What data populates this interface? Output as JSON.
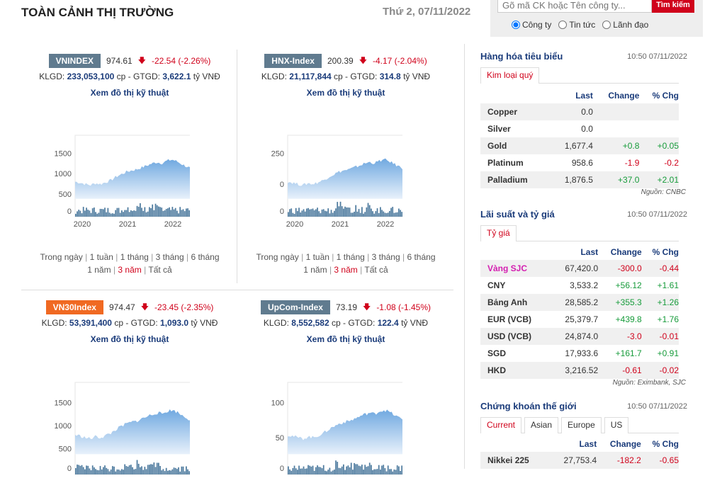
{
  "header": {
    "title": "TOÀN CẢNH THỊ TRƯỜNG",
    "date": "Thứ 2, 07/11/2022"
  },
  "search": {
    "placeholder": "Gõ mã CK hoặc Tên công ty...",
    "button": "Tìm kiếm",
    "options": [
      "Công ty",
      "Tin tức",
      "Lãnh đạo"
    ]
  },
  "indices": [
    {
      "name": "VNINDEX",
      "value": "974.61",
      "change": "-22.54 (-2.26%)",
      "klgd": "233,053,100",
      "gtgd": "3,622.1",
      "yticks": [
        "1500",
        "1000",
        "500",
        "0"
      ],
      "xticks": [
        "2020",
        "2021",
        "2022"
      ]
    },
    {
      "name": "HNX-Index",
      "value": "200.39",
      "change": "-4.17 (-2.04%)",
      "klgd": "21,117,844",
      "gtgd": "314.8",
      "yticks": [
        "250",
        "0",
        "0"
      ],
      "xticks": [
        "2020",
        "2021",
        "2022"
      ]
    },
    {
      "name": "VN30Index",
      "value": "974.47",
      "change": "-23.45 (-2.35%)",
      "klgd": "53,391,400",
      "gtgd": "1,093.0",
      "yticks": [
        "1500",
        "1000",
        "500",
        "0"
      ],
      "xticks": []
    },
    {
      "name": "UpCom-Index",
      "value": "73.19",
      "change": "-1.08 (-1.45%)",
      "klgd": "8,552,582",
      "gtgd": "122.4",
      "yticks": [
        "100",
        "50",
        "0"
      ],
      "xticks": []
    }
  ],
  "labels": {
    "klgd": "KLGD:",
    "cp": "cp - GTGD:",
    "unit": "tỷ VNĐ",
    "chart_link": "Xem đồ thị kỹ thuật"
  },
  "ranges": {
    "row1": [
      "Trong ngày",
      "1 tuần",
      "1 tháng",
      "3 tháng",
      "6 tháng"
    ],
    "row2": [
      "1 năm",
      "3 năm",
      "Tất cả"
    ]
  },
  "commodities": {
    "title": "Hàng hóa tiêu biểu",
    "time": "10:50 07/11/2022",
    "tab": "Kim loại quý",
    "cols": [
      "Last",
      "Change",
      "% Chg"
    ],
    "rows": [
      [
        "Copper",
        "0.0",
        "",
        ""
      ],
      [
        "Silver",
        "0.0",
        "",
        ""
      ],
      [
        "Gold",
        "1,677.4",
        "+0.8",
        "+0.05"
      ],
      [
        "Platinum",
        "958.6",
        "-1.9",
        "-0.2"
      ],
      [
        "Palladium",
        "1,876.5",
        "+37.0",
        "+2.01"
      ]
    ],
    "source": "Nguồn: CNBC"
  },
  "rates": {
    "title": "Lãi suất và tỷ giá",
    "time": "10:50 07/11/2022",
    "tab": "Tỷ giá",
    "cols": [
      "Last",
      "Change",
      "% Chg"
    ],
    "rows": [
      [
        "Vàng SJC",
        "67,420.0",
        "-300.0",
        "-0.44"
      ],
      [
        "CNY",
        "3,533.2",
        "+56.12",
        "+1.61"
      ],
      [
        "Bảng Anh",
        "28,585.2",
        "+355.3",
        "+1.26"
      ],
      [
        "EUR (VCB)",
        "25,379.7",
        "+439.8",
        "+1.76"
      ],
      [
        "USD (VCB)",
        "24,874.0",
        "-3.0",
        "-0.01"
      ],
      [
        "SGD",
        "17,933.6",
        "+161.7",
        "+0.91"
      ],
      [
        "HKD",
        "3,216.52",
        "-0.61",
        "-0.02"
      ]
    ],
    "source": "Nguồn: Eximbank, SJC"
  },
  "world": {
    "title": "Chứng khoán thế giới",
    "time": "10:50 07/11/2022",
    "tabs": [
      "Current",
      "Asian",
      "Europe",
      "US"
    ],
    "cols": [
      "Last",
      "Change",
      "% Chg"
    ],
    "rows": [
      [
        "Nikkei 225",
        "27,753.4",
        "-182.2",
        "-0.65"
      ]
    ]
  }
}
